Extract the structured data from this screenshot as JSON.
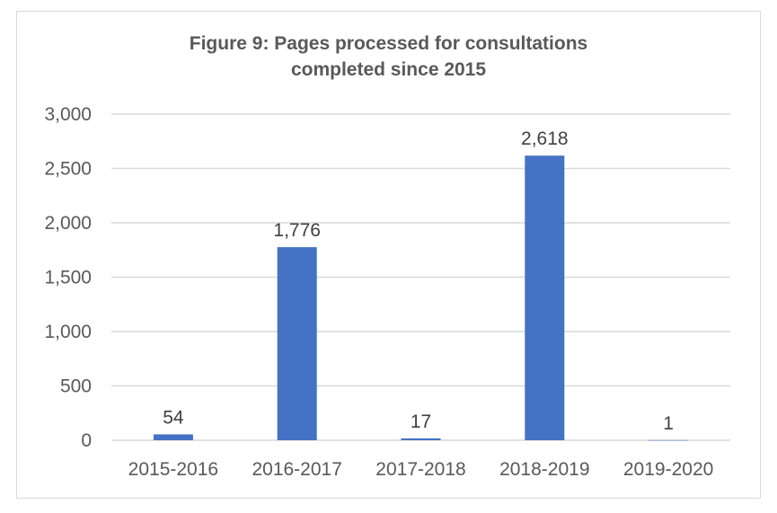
{
  "chart_data": {
    "type": "bar",
    "title_line1": "Figure 9: Pages processed for consultations",
    "title_line2": "completed since 2015",
    "categories": [
      "2015-2016",
      "2016-2017",
      "2017-2018",
      "2018-2019",
      "2019-2020"
    ],
    "values": [
      54,
      1776,
      17,
      2618,
      1
    ],
    "data_labels": [
      "54",
      "1,776",
      "17",
      "2,618",
      "1"
    ],
    "ylim": [
      0,
      3000
    ],
    "yticks": [
      0,
      500,
      1000,
      1500,
      2000,
      2500,
      3000
    ],
    "ytick_labels": [
      "0",
      "500",
      "1,000",
      "1,500",
      "2,000",
      "2,500",
      "3,000"
    ],
    "grid": true,
    "bar_color": "#4472c4",
    "xlabel": "",
    "ylabel": ""
  }
}
